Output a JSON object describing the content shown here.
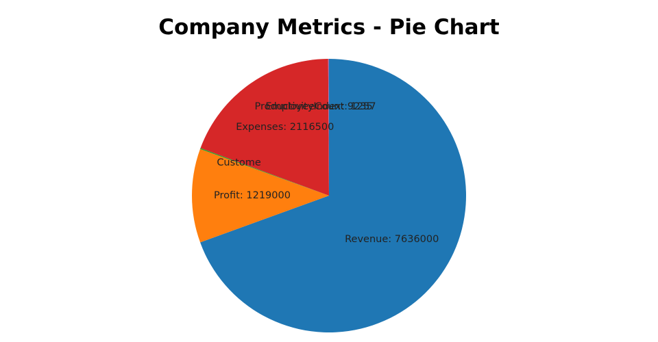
{
  "chart_data": {
    "type": "pie",
    "title": "Company Metrics - Pie Chart",
    "slices": [
      {
        "label": "Revenue",
        "value": 7636000,
        "color": "#1f77b4",
        "text": "Revenue: 7636000"
      },
      {
        "label": "Profit",
        "value": 1219000,
        "color": "#ff7f0e",
        "text": "Profit: 1219000"
      },
      {
        "label": "CustomerCount",
        "value": 14000,
        "color": "#2ca02c",
        "text": "Custome"
      },
      {
        "label": "Expenses",
        "value": 2116500,
        "color": "#d62728",
        "text": "Expenses: 2116500"
      },
      {
        "label": "ProductivityIndex",
        "value": 9235,
        "color": "#9467bd",
        "text": "ProductivityIndex: 9235"
      },
      {
        "label": "EmployeeCount",
        "value": 1257,
        "color": "#8c564b",
        "text": "EmployeeCount: 1257"
      }
    ]
  }
}
